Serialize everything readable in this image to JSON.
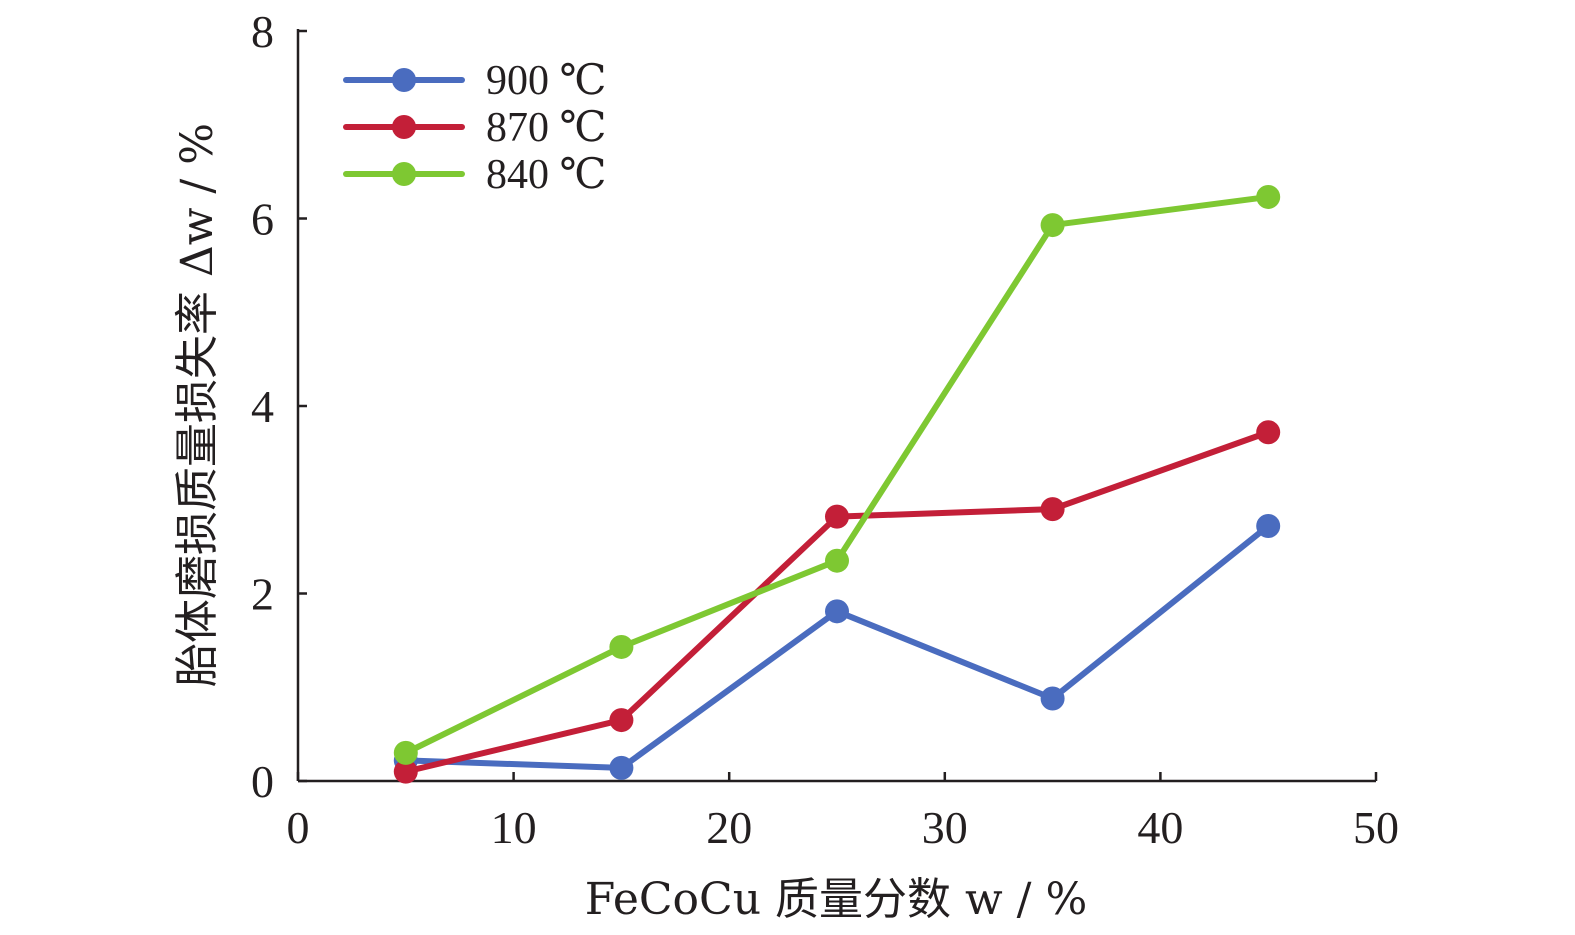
{
  "chart_data": {
    "type": "line",
    "xlabel": "FeCoCu 质量分数 w / %",
    "ylabel": "胎体磨损质量损失率 Δw / %",
    "xlim": [
      0,
      50
    ],
    "ylim": [
      0,
      8
    ],
    "x_ticks": [
      0,
      10,
      20,
      30,
      40,
      50
    ],
    "y_ticks": [
      0,
      2,
      4,
      6,
      8
    ],
    "x_tick_labels": [
      "0",
      "10",
      "20",
      "30",
      "40",
      "50"
    ],
    "y_tick_labels": [
      "0",
      "2",
      "4",
      "6",
      "8"
    ],
    "grid": false,
    "legend_position": "top-left",
    "x": [
      5,
      15,
      25,
      35,
      45
    ],
    "series": [
      {
        "name": "900 ℃",
        "color": "#4a6cbf",
        "values": [
          0.22,
          0.14,
          1.81,
          0.88,
          2.72
        ]
      },
      {
        "name": "870 ℃",
        "color": "#c31f38",
        "values": [
          0.1,
          0.65,
          2.82,
          2.9,
          3.72
        ]
      },
      {
        "name": "840 ℃",
        "color": "#7ec832",
        "values": [
          0.3,
          1.43,
          2.35,
          5.93,
          6.23
        ]
      }
    ]
  }
}
